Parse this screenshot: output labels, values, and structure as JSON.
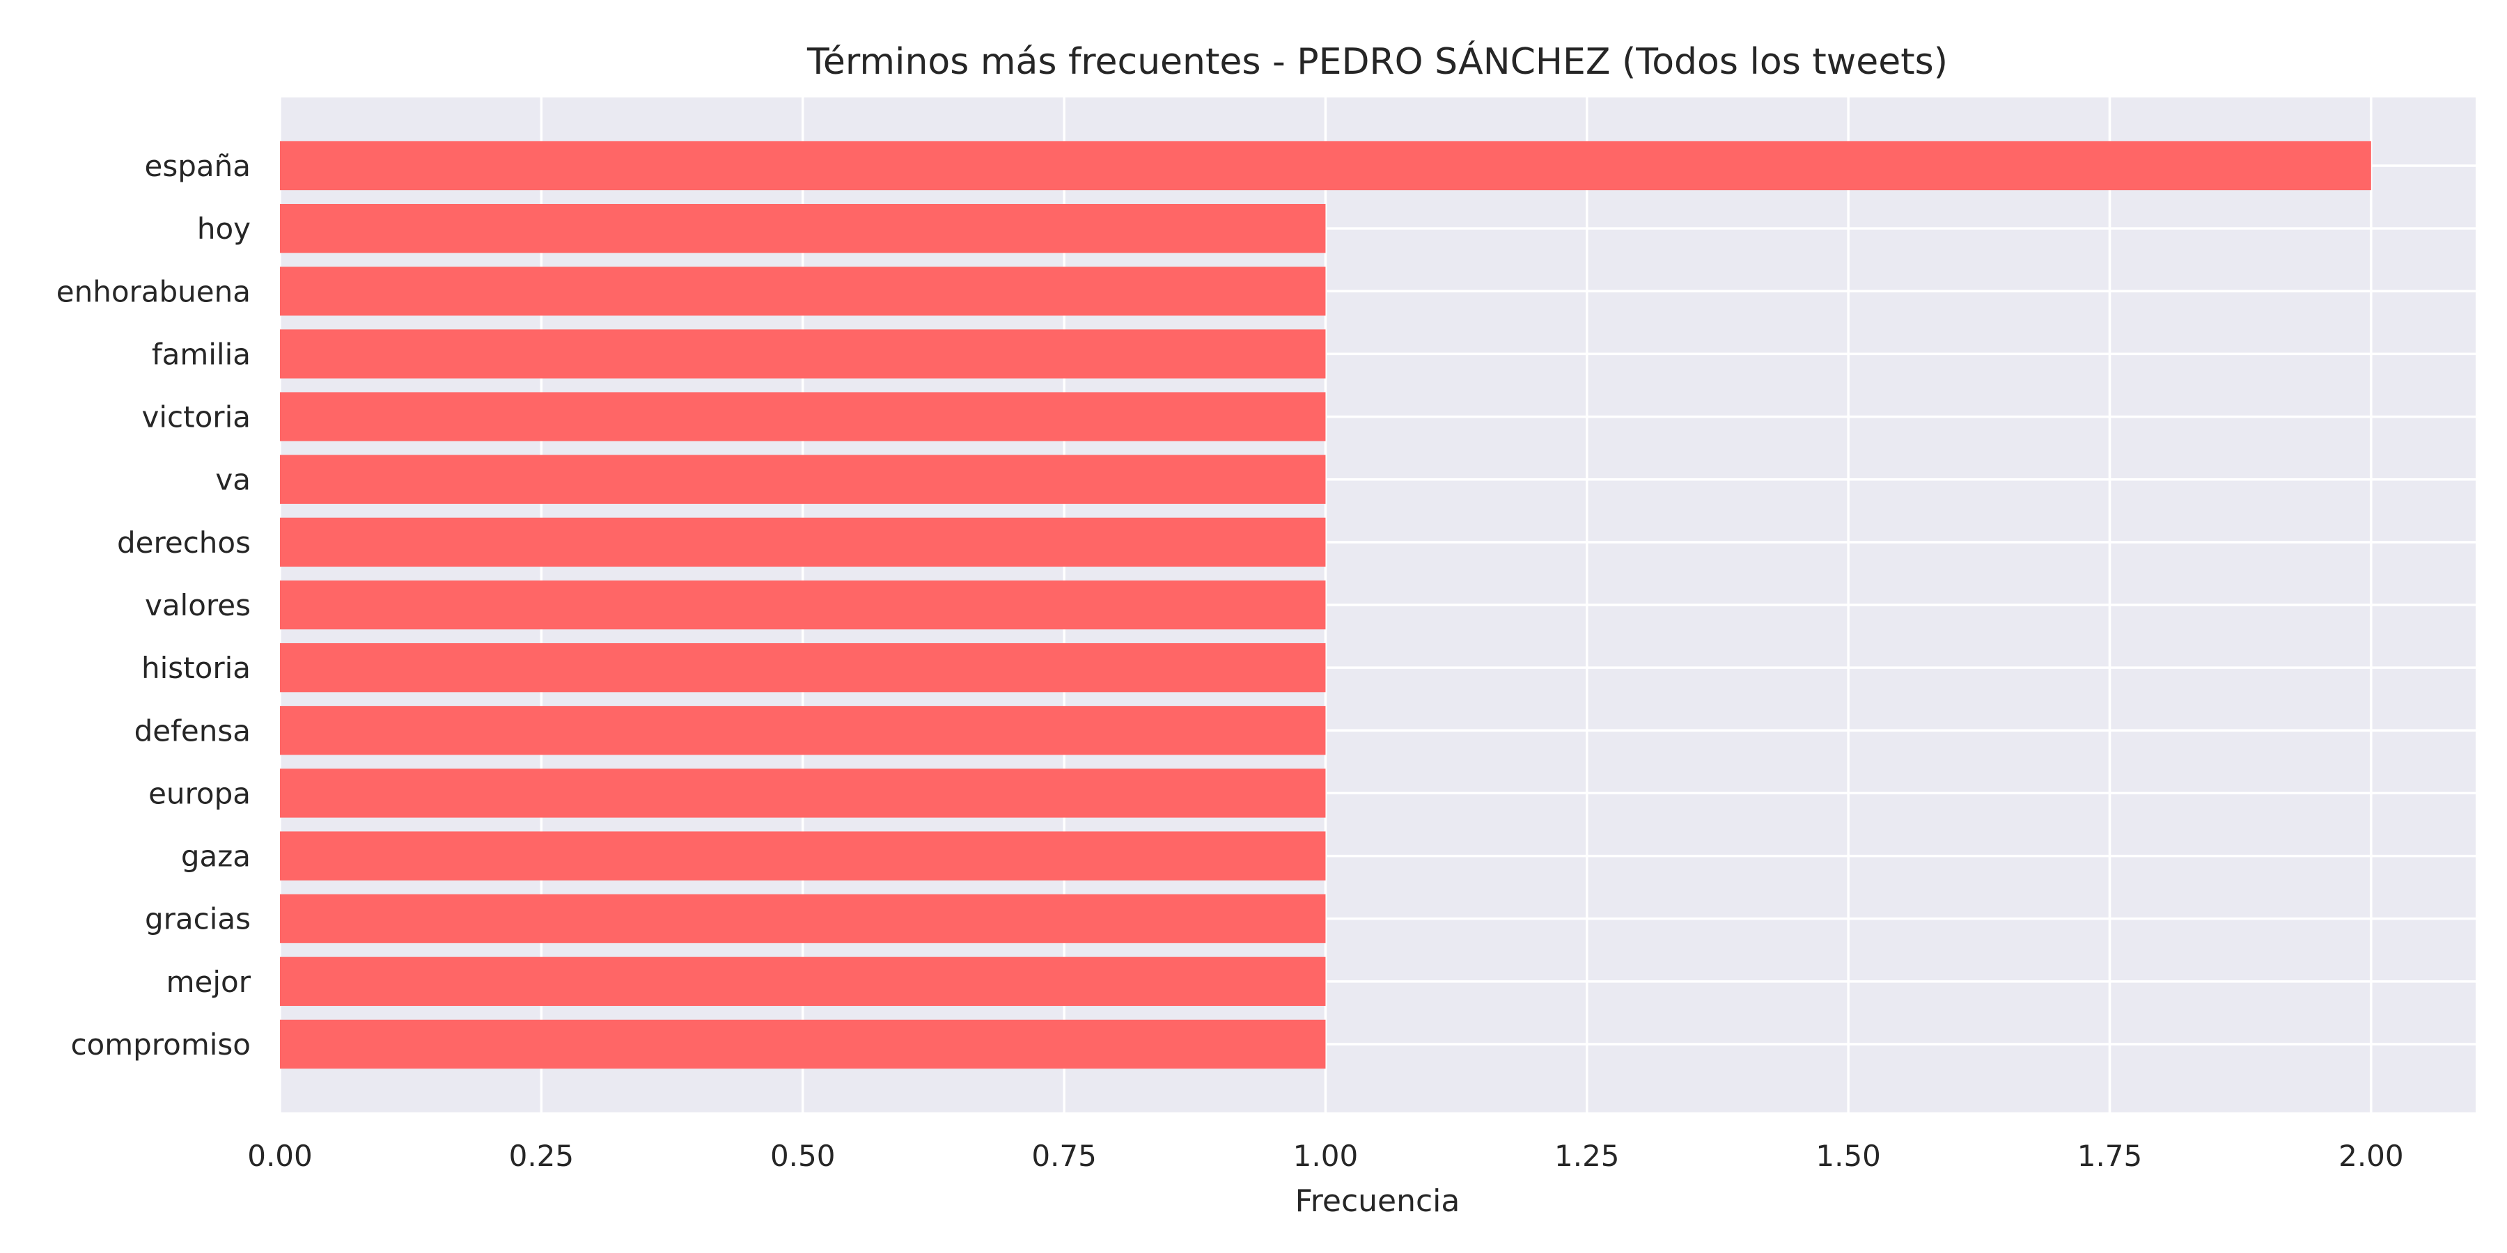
{
  "chart_data": {
    "type": "bar",
    "orientation": "horizontal",
    "title": "Términos más frecuentes - PEDRO SÁNCHEZ (Todos los tweets)",
    "xlabel": "Frecuencia",
    "ylabel": "",
    "categories": [
      "españa",
      "hoy",
      "enhorabuena",
      "familia",
      "victoria",
      "va",
      "derechos",
      "valores",
      "historia",
      "defensa",
      "europa",
      "gaza",
      "gracias",
      "mejor",
      "compromiso"
    ],
    "values": [
      2,
      1,
      1,
      1,
      1,
      1,
      1,
      1,
      1,
      1,
      1,
      1,
      1,
      1,
      1
    ],
    "xlim": [
      0,
      2.1
    ],
    "xticks": [
      "0.00",
      "0.25",
      "0.50",
      "0.75",
      "1.00",
      "1.25",
      "1.50",
      "1.75",
      "2.00"
    ],
    "grid": true,
    "bar_color": "#ff6666",
    "background_color": "#eaeaf2"
  }
}
